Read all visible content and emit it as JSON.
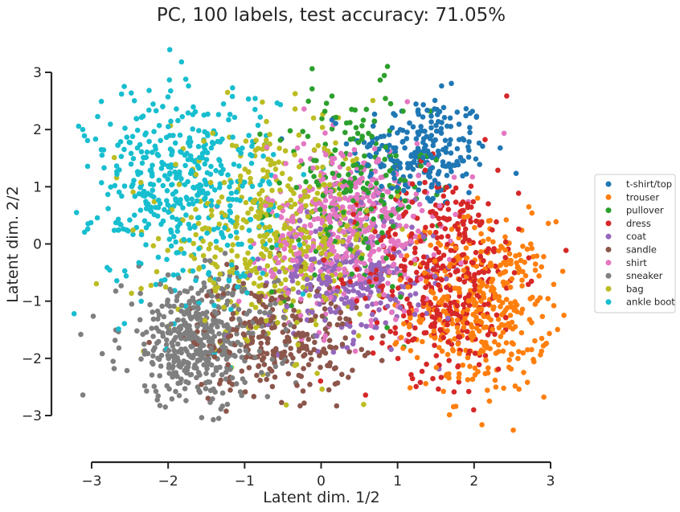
{
  "chart_data": {
    "type": "scatter",
    "title": "PC, 100 labels, test accuracy: 71.05%",
    "xlabel": "Latent dim. 1/2",
    "ylabel": "Latent dim. 2/2",
    "xlim": [
      -3,
      3
    ],
    "ylim": [
      -3,
      3
    ],
    "xticks": [
      -3,
      -2,
      -1,
      0,
      1,
      2,
      3
    ],
    "yticks": [
      -3,
      -2,
      -1,
      0,
      1,
      2,
      3
    ],
    "xtick_labels": [
      "−3",
      "−2",
      "−1",
      "0",
      "1",
      "2",
      "3"
    ],
    "ytick_labels": [
      "−3",
      "−2",
      "−1",
      "0",
      "1",
      "2",
      "3"
    ],
    "grid": false,
    "legend_position": "right",
    "series": [
      {
        "name": "t-shirt/top",
        "color": "#1f77b4",
        "center": [
          1.3,
          1.6
        ],
        "spread": [
          0.45,
          0.5
        ],
        "count": 240
      },
      {
        "name": "trouser",
        "color": "#ff7f0e",
        "center": [
          2.1,
          -1.1
        ],
        "spread": [
          0.45,
          0.75
        ],
        "count": 420
      },
      {
        "name": "pullover",
        "color": "#2ca02c",
        "center": [
          0.4,
          0.9
        ],
        "spread": [
          0.5,
          0.9
        ],
        "count": 220
      },
      {
        "name": "dress",
        "color": "#d62728",
        "center": [
          1.6,
          -0.5
        ],
        "spread": [
          0.5,
          0.9
        ],
        "count": 420
      },
      {
        "name": "coat",
        "color": "#9467bd",
        "center": [
          0.4,
          -0.6
        ],
        "spread": [
          0.55,
          0.55
        ],
        "count": 280
      },
      {
        "name": "sandle",
        "color": "#8c564b",
        "center": [
          -0.6,
          -1.6
        ],
        "spread": [
          0.55,
          0.5
        ],
        "count": 260
      },
      {
        "name": "shirt",
        "color": "#e377c2",
        "center": [
          0.4,
          0.3
        ],
        "spread": [
          0.55,
          0.75
        ],
        "count": 480
      },
      {
        "name": "sneaker",
        "color": "#7f7f7f",
        "center": [
          -1.6,
          -1.7
        ],
        "spread": [
          0.5,
          0.55
        ],
        "count": 460
      },
      {
        "name": "bag",
        "color": "#bcbd22",
        "center": [
          -0.6,
          0.1
        ],
        "spread": [
          0.7,
          0.85
        ],
        "count": 480
      },
      {
        "name": "ankle boot",
        "color": "#17becf",
        "center": [
          -1.8,
          1.0
        ],
        "spread": [
          0.6,
          0.9
        ],
        "count": 480
      }
    ]
  }
}
